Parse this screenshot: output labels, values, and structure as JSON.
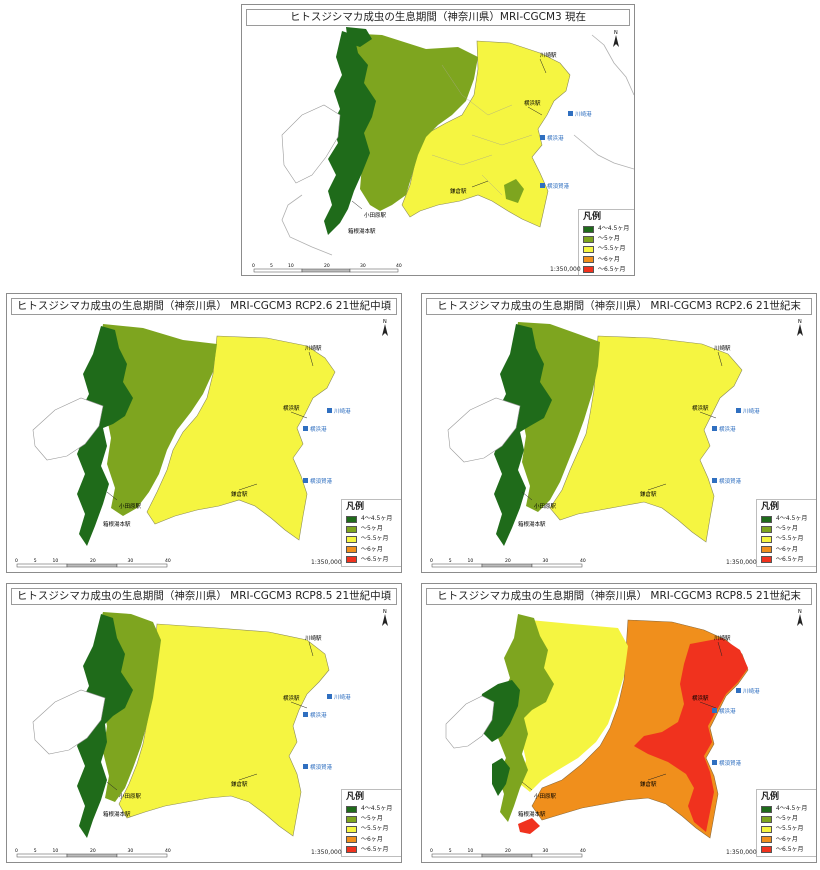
{
  "legend": {
    "title": "凡例",
    "items": [
      {
        "label": "4～4.5ヶ月",
        "color": "#1f6b1a"
      },
      {
        "label": "～5ヶ月",
        "color": "#7ea51f"
      },
      {
        "label": "～5.5ヶ月",
        "color": "#f5f541"
      },
      {
        "label": "～6ヶ月",
        "color": "#f08f1c"
      },
      {
        "label": "～6.5ヶ月",
        "color": "#f0321e"
      }
    ]
  },
  "map_labels": {
    "north": "N",
    "scale": "1:350,000",
    "scale_ticks": [
      "0",
      "5",
      "10",
      "20",
      "30",
      "40"
    ],
    "stations": {
      "kawasaki": "川崎駅",
      "yokohama": "横浜駅",
      "kamakura": "鎌倉駅",
      "odawara": "小田原駅",
      "hakone": "箱根湯本駅"
    },
    "stations_current": {
      "odawara": "小田原駅",
      "hakone": "箱根湯本駅"
    },
    "ports": {
      "kawasaki": "川崎港",
      "yokohama": "横浜港",
      "yokosuka": "横須賀港"
    }
  },
  "panels": [
    {
      "title": "ヒトスジシマカ成虫の生息期間（神奈川県）MRI-CGCM3 現在",
      "scenario": "present"
    },
    {
      "title": "ヒトスジシマカ成虫の生息期間（神奈川県） MRI-CGCM3 RCP2.6 21世紀中頃",
      "scenario": "rcp26_mid"
    },
    {
      "title": "ヒトスジシマカ成虫の生息期間（神奈川県） MRI-CGCM3 RCP2.6 21世紀末",
      "scenario": "rcp26_end"
    },
    {
      "title": "ヒトスジシマカ成虫の生息期間（神奈川県） MRI-CGCM3 RCP8.5 21世紀中頃",
      "scenario": "rcp85_mid"
    },
    {
      "title": "ヒトスジシマカ成虫の生息期間（神奈川県） MRI-CGCM3 RCP8.5 21世紀末",
      "scenario": "rcp85_end"
    }
  ]
}
